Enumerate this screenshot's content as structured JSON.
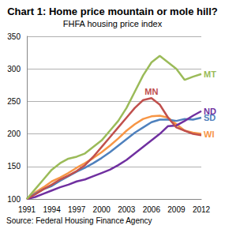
{
  "chart_data": {
    "type": "line",
    "title": "Chart 1: Home price mountain or mole hill?",
    "subtitle": "FHFA housing price index",
    "source": "Source: Federal Housing Finance Agency",
    "categories": [
      "1991",
      null,
      null,
      "1994",
      null,
      null,
      "1997",
      null,
      null,
      "2000",
      null,
      null,
      "2003",
      null,
      null,
      "2006",
      null,
      null,
      "2009",
      null,
      null,
      "2012"
    ],
    "series": [
      {
        "name": "MT",
        "color": "#9bbb59",
        "values": [
          100,
          115,
          130,
          145,
          155,
          162,
          165,
          170,
          180,
          190,
          205,
          220,
          240,
          265,
          290,
          310,
          320,
          310,
          300,
          283,
          288,
          292
        ]
      },
      {
        "name": "MN",
        "color": "#c0504d",
        "values": [
          100,
          107,
          115,
          122,
          130,
          136,
          143,
          152,
          165,
          180,
          195,
          210,
          225,
          240,
          252,
          255,
          245,
          225,
          210,
          205,
          200,
          198
        ]
      },
      {
        "name": "ND",
        "color": "#7030a0",
        "values": [
          100,
          103,
          108,
          113,
          118,
          122,
          127,
          130,
          135,
          140,
          145,
          152,
          160,
          170,
          180,
          190,
          200,
          212,
          213,
          220,
          228,
          235
        ]
      },
      {
        "name": "SD",
        "color": "#4f81bd",
        "values": [
          100,
          108,
          115,
          120,
          128,
          135,
          142,
          148,
          155,
          163,
          172,
          182,
          192,
          202,
          210,
          218,
          222,
          222,
          220,
          223,
          222,
          225
        ]
      },
      {
        "name": "WI",
        "color": "#f79646",
        "values": [
          100,
          110,
          118,
          127,
          133,
          140,
          148,
          155,
          163,
          172,
          182,
          193,
          205,
          215,
          223,
          227,
          228,
          225,
          215,
          205,
          202,
          200
        ]
      }
    ],
    "ylim": [
      100,
      350
    ],
    "yticks": [
      100,
      150,
      200,
      250,
      300,
      350
    ],
    "grid": true
  }
}
